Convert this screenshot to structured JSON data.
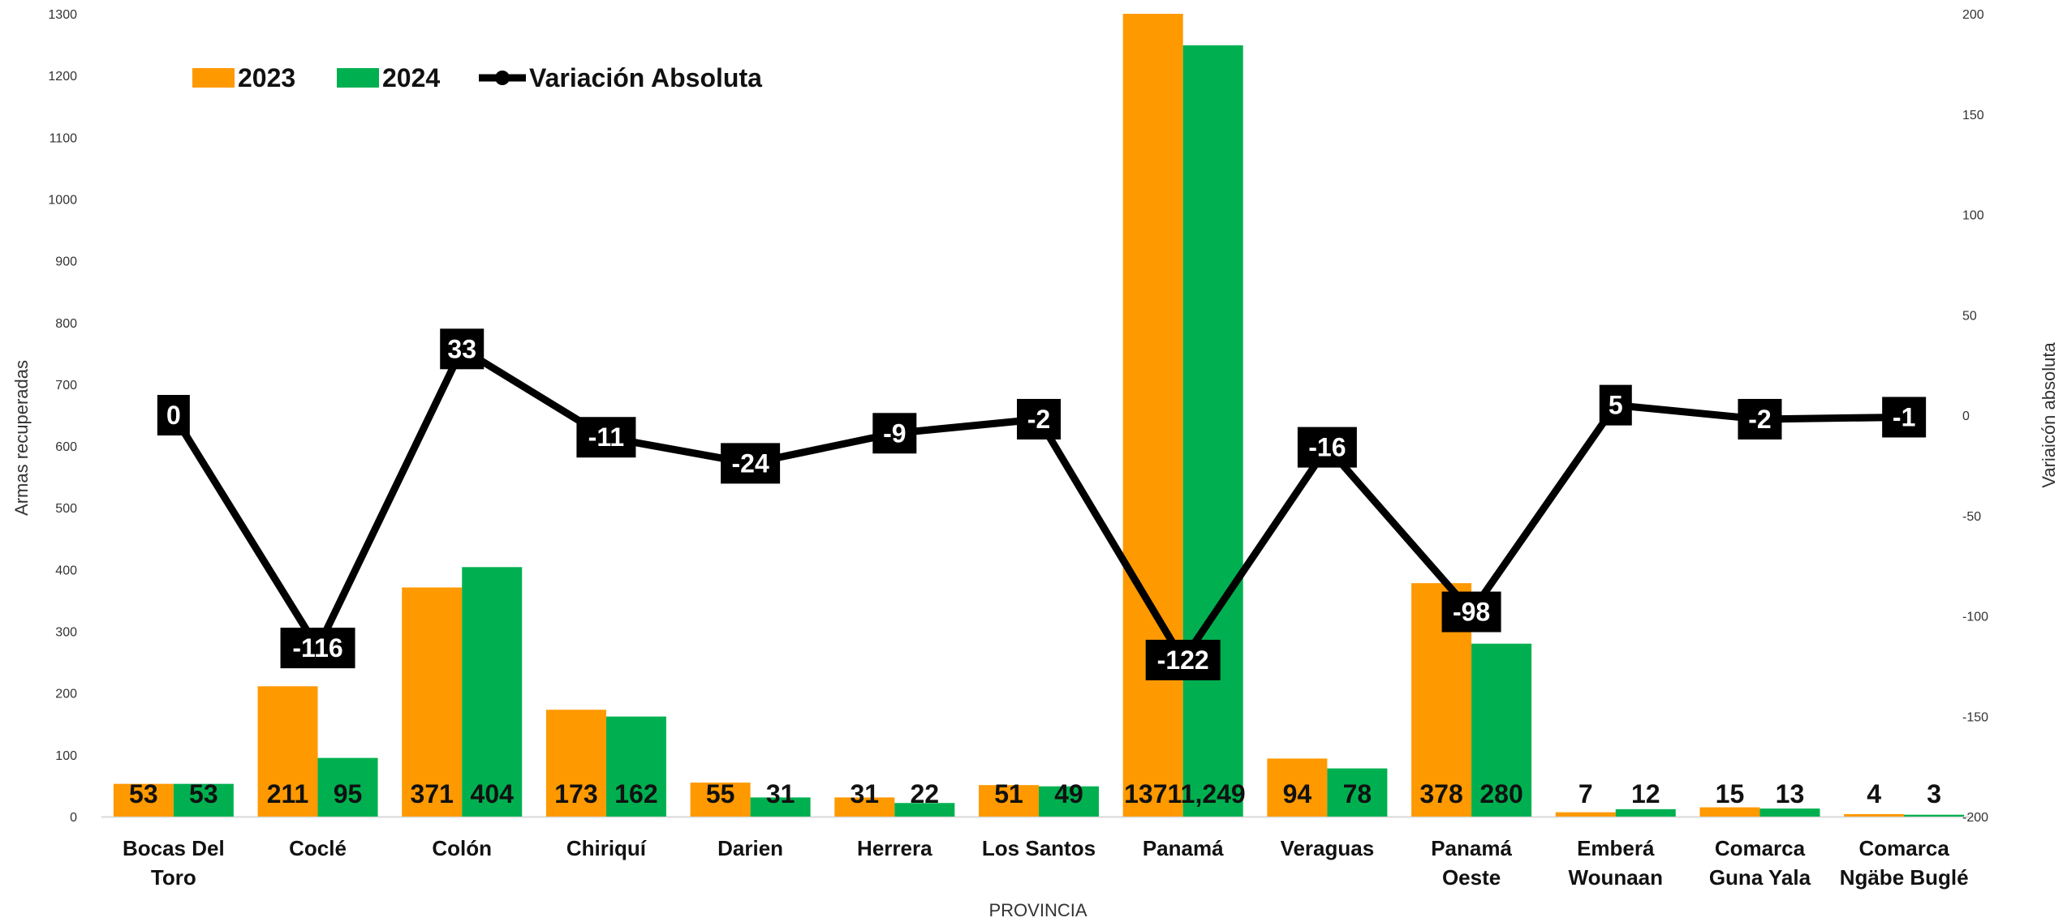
{
  "chart_data": {
    "type": "bar",
    "xlabel": "PROVINCIA",
    "ylabel": "Armas recuperadas",
    "y2label": "Variaicón absoluta",
    "ylim": [
      0,
      1300
    ],
    "y2lim": [
      -200,
      200
    ],
    "grid": false,
    "legend_position": "top-left",
    "colors": {
      "2023": "#ff9900",
      "2024": "#00b050",
      "line": "#000000"
    },
    "categories": [
      "Bocas Del Toro",
      "Coclé",
      "Colón",
      "Chiriquí",
      "Darien",
      "Herrera",
      "Los Santos",
      "Panamá",
      "Veraguas",
      "Panamá Oeste",
      "Emberá Wounaan",
      "Comarca Guna Yala",
      "Comarca Ngäbe Buglé"
    ],
    "category_lines": [
      [
        "Bocas Del",
        "Toro"
      ],
      [
        "Coclé"
      ],
      [
        "Colón"
      ],
      [
        "Chiriquí"
      ],
      [
        "Darien"
      ],
      [
        "Herrera"
      ],
      [
        "Los Santos"
      ],
      [
        "Panamá"
      ],
      [
        "Veraguas"
      ],
      [
        "Panamá",
        "Oeste"
      ],
      [
        "Emberá",
        "Wounaan"
      ],
      [
        "Comarca",
        "Guna Yala"
      ],
      [
        "Comarca",
        "Ngäbe Buglé"
      ]
    ],
    "y_ticks": [
      "0",
      "100",
      "200",
      "300",
      "400",
      "500",
      "600",
      "700",
      "800",
      "900",
      "1000",
      "1100",
      "1200",
      "1300"
    ],
    "y2_ticks": [
      "-200",
      "-150",
      "-100",
      "-50",
      "0",
      "50",
      "100",
      "150",
      "200"
    ],
    "series": [
      {
        "name": "2023",
        "kind": "bar",
        "values": [
          53,
          211,
          371,
          173,
          55,
          31,
          51,
          1371,
          94,
          378,
          7,
          15,
          4
        ],
        "labels": [
          "53",
          "211",
          "371",
          "173",
          "55",
          "31",
          "51",
          "1371",
          "94",
          "378",
          "7",
          "15",
          "4"
        ]
      },
      {
        "name": "2024",
        "kind": "bar",
        "values": [
          53,
          95,
          404,
          162,
          31,
          22,
          49,
          1249,
          78,
          280,
          12,
          13,
          3
        ],
        "labels": [
          "53",
          "95",
          "404",
          "162",
          "31",
          "22",
          "49",
          "1,249",
          "78",
          "280",
          "12",
          "13",
          "3"
        ]
      },
      {
        "name": "Variación Absoluta",
        "kind": "line",
        "axis": "secondary",
        "values": [
          0,
          -116,
          33,
          -11,
          -24,
          -9,
          -2,
          -122,
          -16,
          -98,
          5,
          -2,
          -1
        ],
        "labels": [
          "0",
          "-116",
          "33",
          "-11",
          "-24",
          "-9",
          "-2",
          "-122",
          "-16",
          "-98",
          "5",
          "-2",
          "-1"
        ]
      }
    ]
  }
}
